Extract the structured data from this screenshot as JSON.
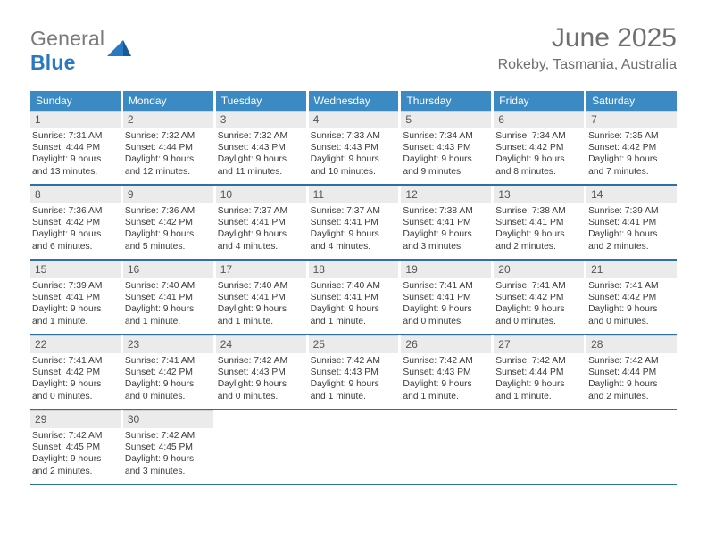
{
  "logo": {
    "general": "General",
    "blue": "Blue"
  },
  "title": {
    "month": "June 2025",
    "location": "Rokeby, Tasmania, Australia"
  },
  "colors": {
    "header_bg": "#3b8ac4",
    "week_border": "#2f6fa8",
    "date_bg": "#ebebeb",
    "text_muted": "#6f6f6f",
    "logo_blue": "#2b78c2",
    "logo_gray": "#7a7a7a"
  },
  "dow": [
    "Sunday",
    "Monday",
    "Tuesday",
    "Wednesday",
    "Thursday",
    "Friday",
    "Saturday"
  ],
  "weeks": [
    [
      {
        "d": "1",
        "sr": "7:31 AM",
        "ss": "4:44 PM",
        "dl": "9 hours and 13 minutes."
      },
      {
        "d": "2",
        "sr": "7:32 AM",
        "ss": "4:44 PM",
        "dl": "9 hours and 12 minutes."
      },
      {
        "d": "3",
        "sr": "7:32 AM",
        "ss": "4:43 PM",
        "dl": "9 hours and 11 minutes."
      },
      {
        "d": "4",
        "sr": "7:33 AM",
        "ss": "4:43 PM",
        "dl": "9 hours and 10 minutes."
      },
      {
        "d": "5",
        "sr": "7:34 AM",
        "ss": "4:43 PM",
        "dl": "9 hours and 9 minutes."
      },
      {
        "d": "6",
        "sr": "7:34 AM",
        "ss": "4:42 PM",
        "dl": "9 hours and 8 minutes."
      },
      {
        "d": "7",
        "sr": "7:35 AM",
        "ss": "4:42 PM",
        "dl": "9 hours and 7 minutes."
      }
    ],
    [
      {
        "d": "8",
        "sr": "7:36 AM",
        "ss": "4:42 PM",
        "dl": "9 hours and 6 minutes."
      },
      {
        "d": "9",
        "sr": "7:36 AM",
        "ss": "4:42 PM",
        "dl": "9 hours and 5 minutes."
      },
      {
        "d": "10",
        "sr": "7:37 AM",
        "ss": "4:41 PM",
        "dl": "9 hours and 4 minutes."
      },
      {
        "d": "11",
        "sr": "7:37 AM",
        "ss": "4:41 PM",
        "dl": "9 hours and 4 minutes."
      },
      {
        "d": "12",
        "sr": "7:38 AM",
        "ss": "4:41 PM",
        "dl": "9 hours and 3 minutes."
      },
      {
        "d": "13",
        "sr": "7:38 AM",
        "ss": "4:41 PM",
        "dl": "9 hours and 2 minutes."
      },
      {
        "d": "14",
        "sr": "7:39 AM",
        "ss": "4:41 PM",
        "dl": "9 hours and 2 minutes."
      }
    ],
    [
      {
        "d": "15",
        "sr": "7:39 AM",
        "ss": "4:41 PM",
        "dl": "9 hours and 1 minute."
      },
      {
        "d": "16",
        "sr": "7:40 AM",
        "ss": "4:41 PM",
        "dl": "9 hours and 1 minute."
      },
      {
        "d": "17",
        "sr": "7:40 AM",
        "ss": "4:41 PM",
        "dl": "9 hours and 1 minute."
      },
      {
        "d": "18",
        "sr": "7:40 AM",
        "ss": "4:41 PM",
        "dl": "9 hours and 1 minute."
      },
      {
        "d": "19",
        "sr": "7:41 AM",
        "ss": "4:41 PM",
        "dl": "9 hours and 0 minutes."
      },
      {
        "d": "20",
        "sr": "7:41 AM",
        "ss": "4:42 PM",
        "dl": "9 hours and 0 minutes."
      },
      {
        "d": "21",
        "sr": "7:41 AM",
        "ss": "4:42 PM",
        "dl": "9 hours and 0 minutes."
      }
    ],
    [
      {
        "d": "22",
        "sr": "7:41 AM",
        "ss": "4:42 PM",
        "dl": "9 hours and 0 minutes."
      },
      {
        "d": "23",
        "sr": "7:41 AM",
        "ss": "4:42 PM",
        "dl": "9 hours and 0 minutes."
      },
      {
        "d": "24",
        "sr": "7:42 AM",
        "ss": "4:43 PM",
        "dl": "9 hours and 0 minutes."
      },
      {
        "d": "25",
        "sr": "7:42 AM",
        "ss": "4:43 PM",
        "dl": "9 hours and 1 minute."
      },
      {
        "d": "26",
        "sr": "7:42 AM",
        "ss": "4:43 PM",
        "dl": "9 hours and 1 minute."
      },
      {
        "d": "27",
        "sr": "7:42 AM",
        "ss": "4:44 PM",
        "dl": "9 hours and 1 minute."
      },
      {
        "d": "28",
        "sr": "7:42 AM",
        "ss": "4:44 PM",
        "dl": "9 hours and 2 minutes."
      }
    ],
    [
      {
        "d": "29",
        "sr": "7:42 AM",
        "ss": "4:45 PM",
        "dl": "9 hours and 2 minutes."
      },
      {
        "d": "30",
        "sr": "7:42 AM",
        "ss": "4:45 PM",
        "dl": "9 hours and 3 minutes."
      },
      null,
      null,
      null,
      null,
      null
    ]
  ],
  "labels": {
    "sunrise": "Sunrise: ",
    "sunset": "Sunset: ",
    "daylight": "Daylight: "
  }
}
